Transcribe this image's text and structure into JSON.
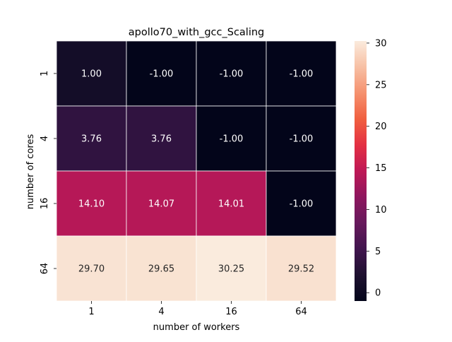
{
  "chart_data": {
    "type": "heatmap",
    "title": "apollo70_with_gcc_Scaling",
    "xlabel": "number of workers",
    "ylabel": "number of cores",
    "x_categories": [
      "1",
      "4",
      "16",
      "64"
    ],
    "y_categories": [
      "1",
      "4",
      "16",
      "64"
    ],
    "values": [
      [
        1.0,
        -1.0,
        -1.0,
        -1.0
      ],
      [
        3.76,
        3.76,
        -1.0,
        -1.0
      ],
      [
        14.1,
        14.07,
        14.01,
        -1.0
      ],
      [
        29.7,
        29.65,
        30.25,
        29.52
      ]
    ],
    "annotations": [
      [
        "1.00",
        "-1.00",
        "-1.00",
        "-1.00"
      ],
      [
        "3.76",
        "3.76",
        "-1.00",
        "-1.00"
      ],
      [
        "14.10",
        "14.07",
        "14.01",
        "-1.00"
      ],
      [
        "29.70",
        "29.65",
        "30.25",
        "29.52"
      ]
    ],
    "colorbar": {
      "vmin": -1.0,
      "vmax": 30.25,
      "ticks": [
        "0",
        "5",
        "10",
        "15",
        "20",
        "25",
        "30"
      ],
      "tick_values": [
        0,
        5,
        10,
        15,
        20,
        25,
        30
      ]
    },
    "colormap": "rocket",
    "grid_line_color": "#ffffff",
    "annotation_color_light": "#ffffff",
    "annotation_color_dark": "#262626",
    "legend": "right"
  }
}
